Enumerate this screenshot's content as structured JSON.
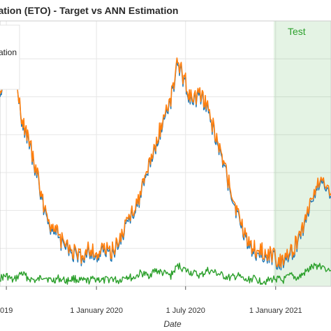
{
  "chart_data": {
    "type": "line",
    "title": "ration (ETO) - Target vs ANN Estimation",
    "xlabel": "Date",
    "ylabel": "",
    "x_tick_labels": [
      "019",
      "1 January 2020",
      "1 July 2020",
      "1 January 2021"
    ],
    "x_ticks": [
      "2019-07-01",
      "2020-01-01",
      "2020-07-01",
      "2021-01-01"
    ],
    "x_range": [
      "2019-06-18",
      "2021-04-24"
    ],
    "y_range": [
      0,
      1
    ],
    "grid": true,
    "legend": {
      "placement": "top-left",
      "visible_text": "ation"
    },
    "test_region": {
      "label": "Test",
      "start": "2020-12-28",
      "color": "#2ca02c"
    },
    "colors": {
      "target": "#1f77b4",
      "estimation": "#ff7f0e",
      "error": "#2ca02c"
    },
    "series": [
      {
        "key": "target",
        "x": [
          "2019-06-18",
          "2019-07-01",
          "2019-07-15",
          "2019-08-01",
          "2019-08-15",
          "2019-09-01",
          "2019-09-15",
          "2019-10-01",
          "2019-10-15",
          "2019-11-01",
          "2019-11-15",
          "2019-12-01",
          "2019-12-15",
          "2020-01-01",
          "2020-01-15",
          "2020-02-01",
          "2020-02-15",
          "2020-03-01",
          "2020-03-15",
          "2020-04-01",
          "2020-04-15",
          "2020-05-01",
          "2020-05-15",
          "2020-06-01",
          "2020-06-15",
          "2020-07-01",
          "2020-07-15",
          "2020-08-01",
          "2020-08-15",
          "2020-09-01",
          "2020-09-15",
          "2020-10-01",
          "2020-10-15",
          "2020-11-01",
          "2020-11-15",
          "2020-12-01",
          "2020-12-15",
          "2021-01-01",
          "2021-01-15",
          "2021-02-01",
          "2021-02-15",
          "2021-03-01",
          "2021-03-15",
          "2021-04-01",
          "2021-04-24"
        ],
        "values": [
          0.74,
          0.8,
          0.86,
          0.62,
          0.55,
          0.42,
          0.3,
          0.22,
          0.18,
          0.14,
          0.12,
          0.1,
          0.14,
          0.11,
          0.13,
          0.12,
          0.16,
          0.22,
          0.28,
          0.34,
          0.44,
          0.52,
          0.62,
          0.7,
          0.84,
          0.76,
          0.68,
          0.72,
          0.66,
          0.56,
          0.46,
          0.36,
          0.26,
          0.18,
          0.14,
          0.12,
          0.12,
          0.1,
          0.09,
          0.12,
          0.16,
          0.24,
          0.32,
          0.4,
          0.34
        ]
      },
      {
        "key": "estimation",
        "x": [
          "2019-06-18",
          "2019-07-01",
          "2019-07-15",
          "2019-08-01",
          "2019-08-15",
          "2019-09-01",
          "2019-09-15",
          "2019-10-01",
          "2019-10-15",
          "2019-11-01",
          "2019-11-15",
          "2019-12-01",
          "2019-12-15",
          "2020-01-01",
          "2020-01-15",
          "2020-02-01",
          "2020-02-15",
          "2020-03-01",
          "2020-03-15",
          "2020-04-01",
          "2020-04-15",
          "2020-05-01",
          "2020-05-15",
          "2020-06-01",
          "2020-06-15",
          "2020-07-01",
          "2020-07-15",
          "2020-08-01",
          "2020-08-15",
          "2020-09-01",
          "2020-09-15",
          "2020-10-01",
          "2020-10-15",
          "2020-11-01",
          "2020-11-15",
          "2020-12-01",
          "2020-12-15",
          "2021-01-01",
          "2021-01-15",
          "2021-02-01",
          "2021-02-15",
          "2021-03-01",
          "2021-03-15",
          "2021-04-01",
          "2021-04-24"
        ],
        "values": [
          0.75,
          0.81,
          0.85,
          0.63,
          0.56,
          0.43,
          0.31,
          0.23,
          0.19,
          0.15,
          0.13,
          0.11,
          0.15,
          0.12,
          0.14,
          0.13,
          0.17,
          0.23,
          0.29,
          0.35,
          0.45,
          0.53,
          0.63,
          0.71,
          0.85,
          0.77,
          0.69,
          0.73,
          0.67,
          0.57,
          0.47,
          0.37,
          0.27,
          0.19,
          0.15,
          0.13,
          0.13,
          0.11,
          0.1,
          0.13,
          0.17,
          0.25,
          0.33,
          0.41,
          0.35
        ]
      },
      {
        "key": "error",
        "x": [
          "2019-06-18",
          "2019-07-01",
          "2019-07-15",
          "2019-08-01",
          "2019-08-15",
          "2019-09-01",
          "2019-09-15",
          "2019-10-01",
          "2019-10-15",
          "2019-11-01",
          "2019-11-15",
          "2019-12-01",
          "2019-12-15",
          "2020-01-01",
          "2020-01-15",
          "2020-02-01",
          "2020-02-15",
          "2020-03-01",
          "2020-03-15",
          "2020-04-01",
          "2020-04-15",
          "2020-05-01",
          "2020-05-15",
          "2020-06-01",
          "2020-06-15",
          "2020-07-01",
          "2020-07-15",
          "2020-08-01",
          "2020-08-15",
          "2020-09-01",
          "2020-09-15",
          "2020-10-01",
          "2020-10-15",
          "2020-11-01",
          "2020-11-15",
          "2020-12-01",
          "2020-12-15",
          "2021-01-01",
          "2021-01-15",
          "2021-02-01",
          "2021-02-15",
          "2021-03-01",
          "2021-03-15",
          "2021-04-01",
          "2021-04-24"
        ],
        "values": [
          0.03,
          0.04,
          0.02,
          0.05,
          0.03,
          0.02,
          0.04,
          0.02,
          0.03,
          0.02,
          0.03,
          0.02,
          0.02,
          0.03,
          0.02,
          0.03,
          0.02,
          0.04,
          0.03,
          0.05,
          0.04,
          0.06,
          0.05,
          0.04,
          0.08,
          0.06,
          0.05,
          0.04,
          0.06,
          0.05,
          0.04,
          0.03,
          0.04,
          0.02,
          0.03,
          0.02,
          0.02,
          0.03,
          0.02,
          0.04,
          0.03,
          0.05,
          0.07,
          0.08,
          0.06
        ]
      }
    ]
  }
}
